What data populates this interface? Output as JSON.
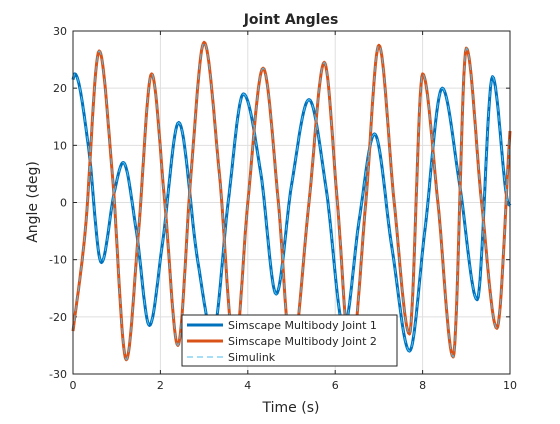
{
  "chart_data": {
    "type": "line",
    "title": "Joint Angles",
    "xlabel": "Time (s)",
    "ylabel": "Angle (deg)",
    "xlim": [
      0,
      10
    ],
    "ylim": [
      -30,
      30
    ],
    "xticks": [
      "0",
      "2",
      "4",
      "6",
      "8",
      "10"
    ],
    "yticks": [
      "30",
      "20",
      "10",
      "0",
      "-10",
      "-20",
      "-30"
    ],
    "grid": true,
    "legend_position": "bottom-center",
    "series": [
      {
        "name": "Simscape Multibody Joint 1",
        "color": "#0072BD",
        "x": [
          0.0,
          0.04,
          0.35,
          0.65,
          0.95,
          1.15,
          1.45,
          1.75,
          2.05,
          2.42,
          2.85,
          3.2,
          3.55,
          3.9,
          4.3,
          4.65,
          5.0,
          5.4,
          5.8,
          6.2,
          6.55,
          6.9,
          7.3,
          7.7,
          8.05,
          8.45,
          8.85,
          9.25,
          9.6,
          9.95,
          10.0
        ],
        "y": [
          21.5,
          22.5,
          10.0,
          -10.5,
          2.0,
          7.0,
          -5.0,
          -21.5,
          -7.0,
          14.0,
          -10.0,
          -23.0,
          0.0,
          19.0,
          5.0,
          -16.0,
          3.0,
          18.0,
          2.0,
          -22.0,
          -3.0,
          12.0,
          -8.0,
          -26.0,
          -5.0,
          20.0,
          3.0,
          -17.0,
          22.0,
          0.0,
          -0.5
        ]
      },
      {
        "name": "Simscape Multibody Joint 2",
        "color": "#D95319",
        "x": [
          0.0,
          0.28,
          0.6,
          0.9,
          1.22,
          1.5,
          1.8,
          2.1,
          2.4,
          2.7,
          3.0,
          3.35,
          3.7,
          4.0,
          4.35,
          4.7,
          5.0,
          5.4,
          5.75,
          6.05,
          6.35,
          6.7,
          7.0,
          7.35,
          7.7,
          8.0,
          8.35,
          8.7,
          9.0,
          9.35,
          9.7,
          10.0
        ],
        "y": [
          -22.5,
          -5.0,
          26.5,
          5.0,
          -27.5,
          -5.0,
          22.5,
          0.0,
          -25.0,
          5.0,
          28.0,
          5.0,
          -26.0,
          0.0,
          23.5,
          0.0,
          -27.0,
          0.0,
          24.5,
          0.0,
          -27.5,
          0.0,
          27.5,
          0.0,
          -23.0,
          22.5,
          0.0,
          -27.0,
          27.0,
          0.0,
          -22.0,
          12.5
        ]
      },
      {
        "name": "Simulink",
        "color": "#4DBEEE",
        "style": "dashed",
        "follows": "all-joints"
      }
    ]
  }
}
